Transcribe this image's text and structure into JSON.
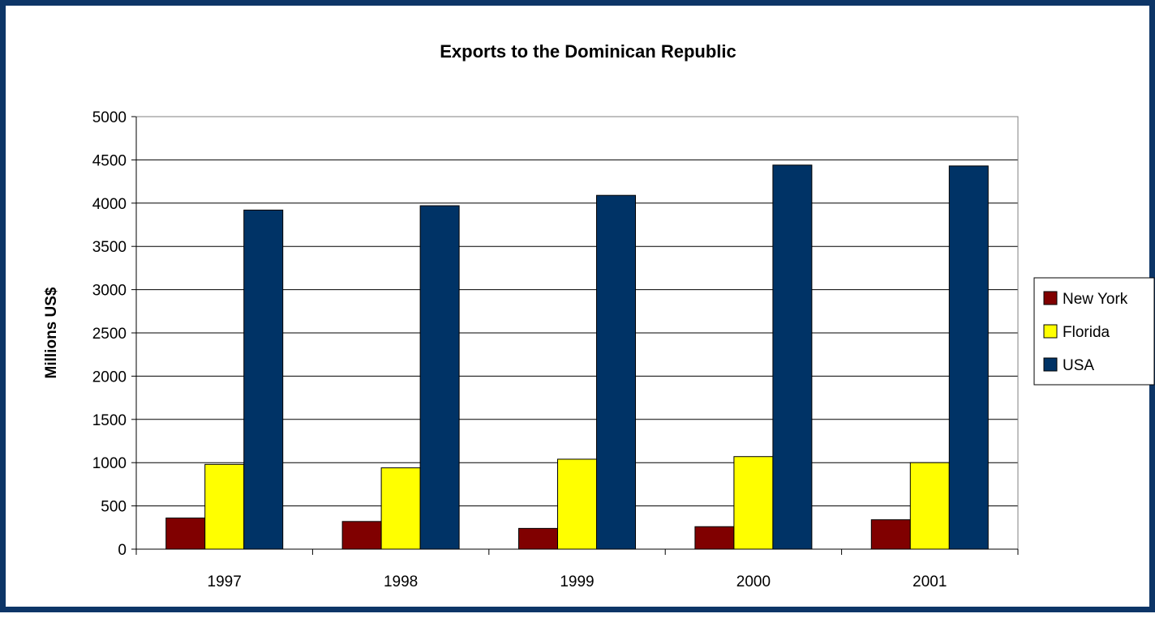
{
  "chart_data": {
    "type": "bar",
    "title": "Exports to the Dominican Republic",
    "ylabel": "Millions US$",
    "xlabel": "",
    "ylim": [
      0,
      5000
    ],
    "y_ticks": [
      "0",
      "500",
      "1000",
      "1500",
      "2000",
      "2500",
      "3000",
      "3500",
      "4000",
      "4500",
      "5000"
    ],
    "categories": [
      "1997",
      "1998",
      "1999",
      "2000",
      "2001"
    ],
    "series": [
      {
        "name": "New York",
        "color": "#800000",
        "values": [
          360,
          320,
          240,
          260,
          340
        ]
      },
      {
        "name": "Florida",
        "color": "#ffff00",
        "values": [
          980,
          940,
          1040,
          1070,
          1000
        ]
      },
      {
        "name": "USA",
        "color": "#003366",
        "values": [
          3920,
          3970,
          4090,
          4440,
          4430
        ]
      }
    ],
    "grid": true,
    "legend_position": "right"
  }
}
